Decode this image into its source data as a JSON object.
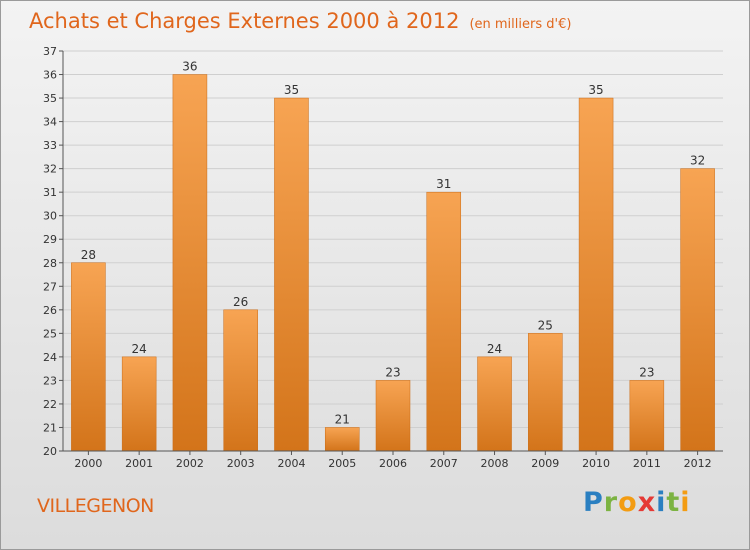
{
  "title": "Achats et Charges Externes 2000 à 2012",
  "title_unit": "(en milliers d'€)",
  "city": "VILLEGENON",
  "logo": {
    "text": "Proxiti",
    "letters": [
      {
        "ch": "P",
        "color": "#2a7fc1"
      },
      {
        "ch": "r",
        "color": "#7cb342"
      },
      {
        "ch": "o",
        "color": "#f39c12"
      },
      {
        "ch": "x",
        "color": "#e53935"
      },
      {
        "ch": "i",
        "color": "#2a7fc1"
      },
      {
        "ch": "t",
        "color": "#7cb342"
      },
      {
        "ch": "i",
        "color": "#f39c12"
      }
    ]
  },
  "colors": {
    "accent": "#e0661c",
    "bar_top": "#f7a453",
    "bar_bottom": "#d3741a",
    "grid": "#cfcfcf"
  },
  "chart_data": {
    "type": "bar",
    "title": "Achats et Charges Externes 2000 à 2012",
    "subtitle": "(en milliers d'€)",
    "xlabel": "",
    "ylabel": "",
    "categories": [
      "2000",
      "2001",
      "2002",
      "2003",
      "2004",
      "2005",
      "2006",
      "2007",
      "2008",
      "2009",
      "2010",
      "2011",
      "2012"
    ],
    "values": [
      28,
      24,
      36,
      26,
      35,
      21,
      23,
      31,
      24,
      25,
      35,
      23,
      32
    ],
    "ylim": [
      20,
      37
    ],
    "yticks": [
      20,
      21,
      22,
      23,
      24,
      25,
      26,
      27,
      28,
      29,
      30,
      31,
      32,
      33,
      34,
      35,
      36,
      37
    ],
    "grid": true,
    "data_labels": true
  }
}
